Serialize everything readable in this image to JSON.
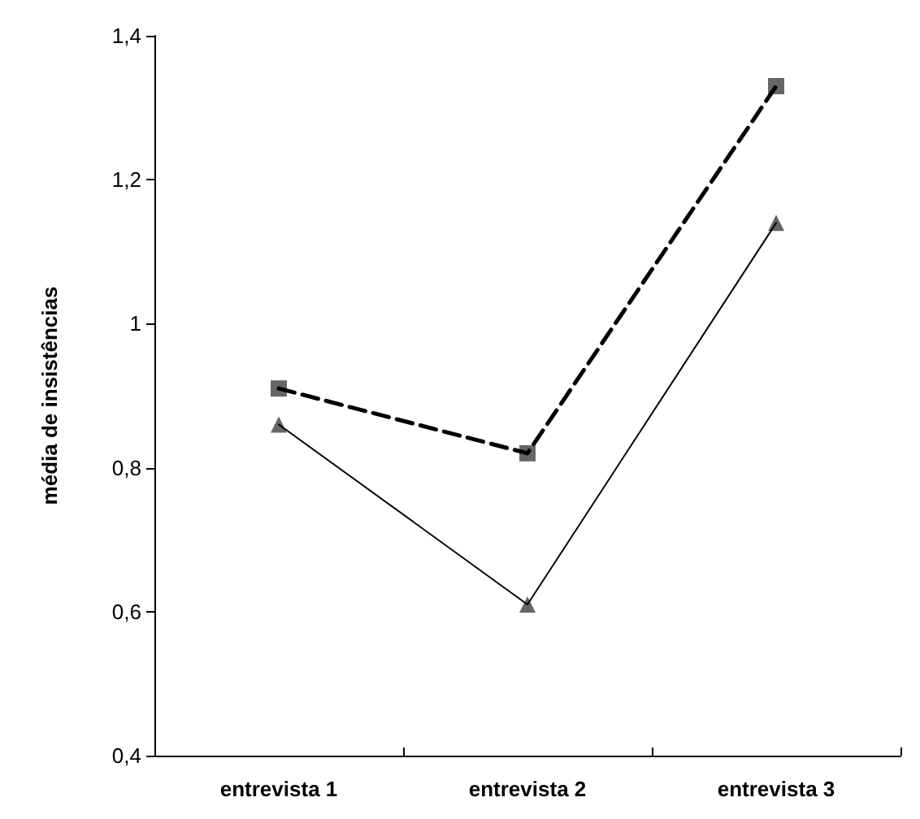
{
  "chart_data": {
    "type": "line",
    "ylabel": "média de insistências",
    "categories": [
      "entrevista 1",
      "entrevista 2",
      "entrevista 3"
    ],
    "series": [
      {
        "color": "#000000",
        "values": [
          0.91,
          0.82,
          1.33
        ],
        "marker": "square",
        "line_style": "dashed"
      },
      {
        "color": "#000000",
        "values": [
          0.86,
          0.61,
          1.14
        ],
        "marker": "triangle",
        "line_style": "solid"
      }
    ],
    "ylim": [
      0.4,
      1.4
    ],
    "yticks": [
      {
        "value": 0.4,
        "label": "0,4"
      },
      {
        "value": 0.6,
        "label": "0,6"
      },
      {
        "value": 0.8,
        "label": "0,8"
      },
      {
        "value": 1,
        "label": "1"
      },
      {
        "value": 1.2,
        "label": "1,2"
      },
      {
        "value": 1.4,
        "label": "1,4"
      }
    ],
    "tick_labels": true
  }
}
